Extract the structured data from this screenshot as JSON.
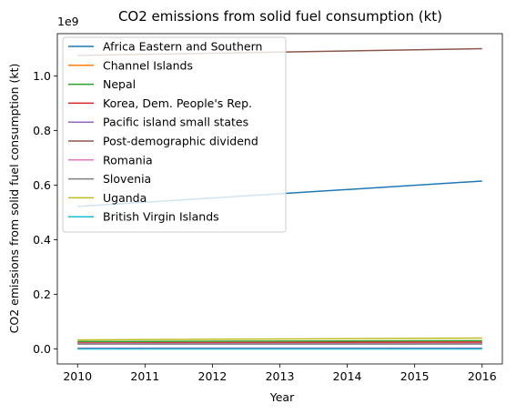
{
  "chart_data": {
    "type": "line",
    "title": "CO2 emissions from solid fuel consumption (kt)",
    "xlabel": "Year",
    "ylabel": "CO2 emissions from solid fuel consumption (kt)",
    "y_offset_label": "1e9",
    "x_ticks": [
      "2010",
      "2011",
      "2012",
      "2013",
      "2014",
      "2015",
      "2016"
    ],
    "y_ticks": [
      "0.0",
      "0.2",
      "0.4",
      "0.6",
      "0.8",
      "1.0"
    ],
    "x": [
      2010,
      2016
    ],
    "xlim": [
      2009.7,
      2016.3
    ],
    "ylim": [
      -0.055,
      1.155
    ],
    "grid": false,
    "legend_position": "upper-left",
    "series": [
      {
        "name": "Africa Eastern and Southern",
        "color": "#1f77b4",
        "values": [
          0.522,
          0.615
        ]
      },
      {
        "name": "Channel Islands",
        "color": "#ff7f0e",
        "values": [
          0.02,
          0.02
        ]
      },
      {
        "name": "Nepal",
        "color": "#2ca02c",
        "values": [
          0.027,
          0.03
        ]
      },
      {
        "name": "Korea, Dem. People's Rep.",
        "color": "#d62728",
        "values": [
          0.022,
          0.025
        ]
      },
      {
        "name": "Pacific island small states",
        "color": "#9467bd",
        "values": [
          0.003,
          0.003
        ]
      },
      {
        "name": "Post-demographic dividend",
        "color": "#8c564b",
        "values": [
          1.075,
          1.1
        ]
      },
      {
        "name": "Romania",
        "color": "#e377c2",
        "values": [
          0.02,
          0.02
        ]
      },
      {
        "name": "Slovenia",
        "color": "#7f7f7f",
        "values": [
          0.018,
          0.018
        ]
      },
      {
        "name": "Uganda",
        "color": "#bcbd22",
        "values": [
          0.033,
          0.04
        ]
      },
      {
        "name": "British Virgin Islands",
        "color": "#17becf",
        "values": [
          0.0,
          0.0
        ]
      }
    ]
  }
}
